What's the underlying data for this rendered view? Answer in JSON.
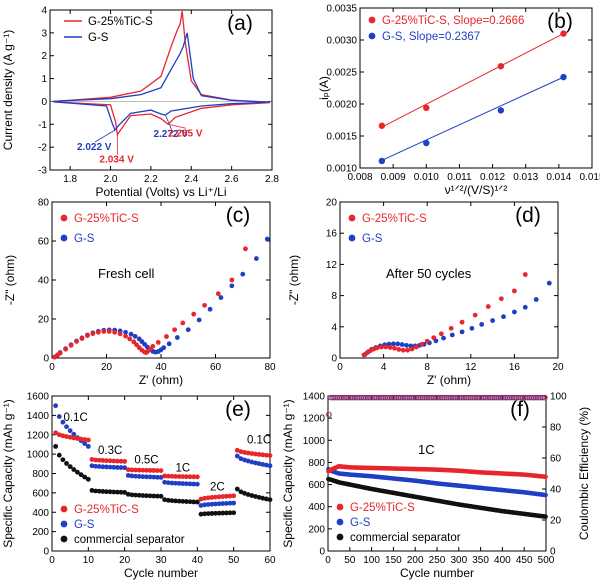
{
  "chart_data": [
    {
      "panel_label": "(a)",
      "type": "line",
      "xlabel": "Potential (Volts) vs Li⁺/Li",
      "ylabel": "Current density (A g⁻¹)",
      "xlim": [
        1.7,
        2.8
      ],
      "ylim": [
        -3,
        4
      ],
      "xticks": [
        "1.8",
        "2.0",
        "2.2",
        "2.4",
        "2.6",
        "2.8"
      ],
      "yticks": [
        "-3",
        "-2",
        "-1",
        "0",
        "1",
        "2",
        "3",
        "4"
      ],
      "legend_position": "top-left",
      "series": [
        {
          "name": "G-25%TiC-S",
          "color": "#e8262b",
          "x": [
            1.72,
            2.0,
            2.025,
            2.034,
            2.05,
            2.1,
            2.2,
            2.25,
            2.285,
            2.32,
            2.45,
            2.6,
            2.79,
            2.6,
            2.45,
            2.4,
            2.37,
            2.355,
            2.345,
            2.33,
            2.3,
            2.25,
            2.15,
            2.0,
            1.8,
            1.72
          ],
          "y": [
            -0.02,
            -0.15,
            -0.9,
            -1.45,
            -1.25,
            -0.62,
            -0.55,
            -0.75,
            -1.0,
            -0.7,
            -0.3,
            -0.15,
            -0.05,
            0.06,
            0.3,
            0.9,
            2.6,
            3.95,
            3.4,
            3.1,
            2.4,
            1.1,
            0.45,
            0.18,
            0.05,
            0.0
          ]
        },
        {
          "name": "G-S",
          "color": "#1f3fc5",
          "x": [
            1.72,
            1.98,
            2.01,
            2.022,
            2.04,
            2.1,
            2.2,
            2.25,
            2.272,
            2.3,
            2.45,
            2.6,
            2.79,
            2.6,
            2.45,
            2.41,
            2.38,
            2.36,
            2.345,
            2.3,
            2.25,
            2.15,
            2.0,
            1.8,
            1.72
          ],
          "y": [
            -0.02,
            -0.2,
            -1.0,
            -1.25,
            -1.05,
            -0.52,
            -0.38,
            -0.55,
            -0.6,
            -0.42,
            -0.2,
            -0.1,
            -0.03,
            0.05,
            0.25,
            1.0,
            3.0,
            2.4,
            2.1,
            1.4,
            0.6,
            0.3,
            0.12,
            0.04,
            0.0
          ]
        }
      ],
      "annotations": [
        {
          "text": "2.022 V",
          "color": "#1f3fc5",
          "x": 2.022,
          "y": -1.25
        },
        {
          "text": "2.034 V",
          "color": "#e8262b",
          "x": 2.034,
          "y": -1.45
        },
        {
          "text": "2.272 V",
          "color": "#1f3fc5",
          "x": 2.272,
          "y": -0.6
        },
        {
          "text": "2.285 V",
          "color": "#e8262b",
          "x": 2.285,
          "y": -1.0
        }
      ]
    },
    {
      "panel_label": "(b)",
      "type": "scatter",
      "xlabel": "ν¹ᐟ²/(V/S)¹ᐟ²",
      "ylabel": "iₚ(A)",
      "xlim": [
        0.008,
        0.015
      ],
      "ylim": [
        0.001,
        0.0035
      ],
      "xticks": [
        "0.008",
        "0.009",
        "0.010",
        "0.011",
        "0.012",
        "0.013",
        "0.014",
        "0.015"
      ],
      "yticks": [
        "0.0010",
        "0.0015",
        "0.0020",
        "0.0025",
        "0.0030",
        "0.0035"
      ],
      "legend_position": "top-left",
      "series": [
        {
          "name": "G-25%TiC-S, Slope=0.2666",
          "color": "#e8262b",
          "x": [
            0.00866,
            0.01,
            0.01225,
            0.01414
          ],
          "y": [
            0.00166,
            0.00194,
            0.00259,
            0.0031
          ],
          "fit": {
            "slope": 0.2666,
            "x_range": [
              0.00866,
              0.01414
            ],
            "y_range": [
              0.00164,
              0.0031
            ]
          }
        },
        {
          "name": "G-S, Slope=0.2367",
          "color": "#1f3fc5",
          "x": [
            0.00866,
            0.01,
            0.01225,
            0.01414
          ],
          "y": [
            0.00111,
            0.00139,
            0.0019,
            0.00242
          ],
          "fit": {
            "slope": 0.2367,
            "x_range": [
              0.00866,
              0.01414
            ],
            "y_range": [
              0.00112,
              0.00242
            ]
          }
        }
      ]
    },
    {
      "panel_label": "(c)",
      "type": "scatter",
      "xlabel": "Z' (ohm)",
      "ylabel": "-Z\" (ohm)",
      "xlim": [
        0,
        80
      ],
      "ylim": [
        0,
        80
      ],
      "xticks": [
        "0",
        "20",
        "40",
        "60",
        "80"
      ],
      "yticks": [
        "0",
        "20",
        "40",
        "60",
        "80"
      ],
      "annotation": "Fresh  cell",
      "legend_position": "top-left",
      "series": [
        {
          "name": "G-25%TiC-S",
          "color": "#e8262b",
          "x": [
            1,
            2,
            3,
            5,
            7,
            9,
            11,
            13,
            15,
            17,
            19,
            21,
            23,
            25,
            27,
            28.5,
            30,
            31,
            32,
            33,
            34,
            34.5,
            35,
            36,
            37,
            39,
            42,
            45,
            48,
            52,
            56,
            61,
            66,
            71
          ],
          "y": [
            0.5,
            1.5,
            2.5,
            4.5,
            6.5,
            8.5,
            10,
            11.5,
            12.5,
            13.2,
            13.6,
            13.6,
            13.2,
            12.4,
            11.2,
            9.8,
            8.3,
            6.8,
            5.3,
            4,
            3,
            2.8,
            3.2,
            4.5,
            6,
            8,
            11,
            14.5,
            18,
            22.5,
            27,
            33,
            40,
            56
          ]
        },
        {
          "name": "G-S",
          "color": "#1f3fc5",
          "x": [
            1,
            2,
            3,
            5,
            7,
            9,
            11,
            13,
            15,
            17,
            19,
            21,
            23,
            25,
            27,
            29,
            30.5,
            32,
            33,
            34,
            35,
            36,
            37,
            38,
            39,
            40,
            41,
            43,
            46,
            50,
            54,
            58,
            62,
            66,
            70,
            75,
            79
          ],
          "y": [
            0.5,
            1.5,
            2.8,
            4.8,
            6.8,
            8.7,
            10.3,
            11.8,
            12.9,
            13.7,
            14.2,
            14.4,
            14.3,
            13.9,
            13.2,
            12.2,
            11.1,
            9.8,
            8.4,
            7,
            5.6,
            4.3,
            3.4,
            3,
            3.3,
            4.2,
            5.3,
            7.3,
            10.5,
            14.5,
            19.5,
            25,
            31,
            37,
            43,
            51,
            61
          ]
        }
      ]
    },
    {
      "panel_label": "(d)",
      "type": "scatter",
      "xlabel": "Z' (ohm)",
      "ylabel": "-Z\" (ohm)",
      "xlim": [
        0,
        20
      ],
      "ylim": [
        0,
        20
      ],
      "xticks": [
        "0",
        "4",
        "8",
        "12",
        "16",
        "20"
      ],
      "yticks": [
        "0",
        "4",
        "8",
        "12",
        "16",
        "20"
      ],
      "annotation": "After 50 cycles",
      "legend_position": "top-left",
      "series": [
        {
          "name": "G-25%TiC-S",
          "color": "#e8262b",
          "x": [
            2.2,
            2.5,
            2.8,
            3.1,
            3.4,
            3.8,
            4.2,
            4.6,
            5,
            5.4,
            5.8,
            6.2,
            6.6,
            7,
            7.5,
            8,
            8.6,
            9.3,
            10.2,
            11.2,
            12.4,
            13.6,
            14.8,
            16,
            17
          ],
          "y": [
            0.4,
            0.7,
            0.95,
            1.15,
            1.3,
            1.4,
            1.42,
            1.35,
            1.25,
            1.1,
            1.0,
            1.0,
            1.15,
            1.4,
            1.75,
            2.15,
            2.6,
            3.1,
            3.8,
            4.6,
            5.5,
            6.6,
            7.6,
            8.6,
            10.7
          ]
        },
        {
          "name": "G-S",
          "color": "#1f3fc5",
          "x": [
            2.3,
            2.6,
            2.9,
            3.3,
            3.7,
            4.1,
            4.5,
            4.9,
            5.3,
            5.7,
            6.1,
            6.5,
            6.9,
            7.3,
            7.7,
            8.2,
            8.8,
            9.5,
            10.3,
            11.2,
            12.1,
            13,
            14,
            15,
            16,
            17,
            18,
            19.2
          ],
          "y": [
            0.45,
            0.8,
            1.1,
            1.35,
            1.55,
            1.7,
            1.78,
            1.82,
            1.8,
            1.72,
            1.62,
            1.55,
            1.55,
            1.62,
            1.75,
            1.95,
            2.2,
            2.55,
            2.95,
            3.35,
            3.8,
            4.3,
            4.8,
            5.3,
            5.9,
            6.5,
            7.5,
            9.6
          ]
        }
      ]
    },
    {
      "panel_label": "(e)",
      "type": "scatter",
      "xlabel": "Cycle number",
      "ylabel": "Specific Capacity (mAh g⁻¹)",
      "xlim": [
        0,
        60
      ],
      "ylim": [
        0,
        1600
      ],
      "xticks": [
        "0",
        "10",
        "20",
        "30",
        "40",
        "50",
        "60"
      ],
      "yticks": [
        "0",
        "200",
        "400",
        "600",
        "800",
        "1000",
        "1200",
        "1400",
        "1600"
      ],
      "rate_labels": [
        {
          "text": "0.1C",
          "x": 6.5,
          "y": 1340
        },
        {
          "text": "0.3C",
          "x": 16,
          "y": 1000
        },
        {
          "text": "0.5C",
          "x": 26,
          "y": 905
        },
        {
          "text": "1C",
          "x": 36,
          "y": 820
        },
        {
          "text": "2C",
          "x": 45.5,
          "y": 625
        },
        {
          "text": "0.1C",
          "x": 57,
          "y": 1110
        }
      ],
      "legend_position": "bottom-left",
      "series": [
        {
          "name": "G-25%TiC-S",
          "color": "#e8262b",
          "stages": [
            {
              "cycles": [
                1,
                10
              ],
              "start": 1220,
              "end": 1145
            },
            {
              "cycles": [
                11,
                20
              ],
              "start": 945,
              "end": 925
            },
            {
              "cycles": [
                21,
                30
              ],
              "start": 840,
              "end": 830
            },
            {
              "cycles": [
                31,
                40
              ],
              "start": 775,
              "end": 765
            },
            {
              "cycles": [
                41,
                50
              ],
              "start": 535,
              "end": 570
            },
            {
              "cycles": [
                51,
                60
              ],
              "start": 1040,
              "end": 985
            }
          ]
        },
        {
          "name": "G-S",
          "color": "#1f3fc5",
          "stages": [
            {
              "cycles": [
                1,
                10
              ],
              "start": 1500,
              "end": 1080
            },
            {
              "cycles": [
                11,
                20
              ],
              "start": 880,
              "end": 860
            },
            {
              "cycles": [
                21,
                30
              ],
              "start": 780,
              "end": 760
            },
            {
              "cycles": [
                31,
                40
              ],
              "start": 710,
              "end": 690
            },
            {
              "cycles": [
                41,
                50
              ],
              "start": 470,
              "end": 495
            },
            {
              "cycles": [
                51,
                60
              ],
              "start": 980,
              "end": 880
            }
          ]
        },
        {
          "name": "commercial separator",
          "color": "#111111",
          "stages": [
            {
              "cycles": [
                1,
                10
              ],
              "start": 1080,
              "end": 740
            },
            {
              "cycles": [
                11,
                20
              ],
              "start": 625,
              "end": 605
            },
            {
              "cycles": [
                21,
                30
              ],
              "start": 585,
              "end": 565
            },
            {
              "cycles": [
                31,
                40
              ],
              "start": 530,
              "end": 505
            },
            {
              "cycles": [
                41,
                50
              ],
              "start": 380,
              "end": 395
            },
            {
              "cycles": [
                51,
                60
              ],
              "start": 640,
              "end": 530
            }
          ]
        }
      ]
    },
    {
      "panel_label": "(f)",
      "type": "scatter",
      "xlabel": "Cycle number",
      "ylabel": "Specific Capacity (mAh g⁻¹)",
      "y2label": "Coulombic Efficiency (%)",
      "xlim": [
        0,
        500
      ],
      "ylim": [
        0,
        1400
      ],
      "y2lim": [
        0,
        100
      ],
      "xticks": [
        "0",
        "50",
        "100",
        "150",
        "200",
        "250",
        "300",
        "350",
        "400",
        "450",
        "500"
      ],
      "yticks": [
        "0",
        "200",
        "400",
        "600",
        "800",
        "1000",
        "1200",
        "1400"
      ],
      "y2ticks": [
        "0",
        "20",
        "40",
        "60",
        "80",
        "100"
      ],
      "annotation": "1C",
      "legend_position": "bottom-left",
      "series": [
        {
          "name": "G-25%TiC-S",
          "color": "#e8262b",
          "x": [
            1,
            10,
            25,
            50,
            100,
            150,
            200,
            250,
            300,
            350,
            400,
            450,
            500
          ],
          "y": [
            720,
            740,
            765,
            755,
            750,
            745,
            740,
            735,
            725,
            710,
            700,
            690,
            670
          ]
        },
        {
          "name": "G-S",
          "color": "#1f3fc5",
          "x": [
            1,
            10,
            25,
            50,
            100,
            150,
            200,
            250,
            300,
            350,
            400,
            450,
            500
          ],
          "y": [
            740,
            720,
            700,
            690,
            675,
            655,
            635,
            610,
            590,
            570,
            550,
            530,
            505
          ]
        },
        {
          "name": "commercial separator",
          "color": "#111111",
          "x": [
            1,
            10,
            25,
            50,
            100,
            150,
            200,
            250,
            300,
            350,
            400,
            450,
            500
          ],
          "y": [
            650,
            640,
            620,
            600,
            560,
            525,
            490,
            455,
            420,
            390,
            360,
            335,
            310
          ]
        }
      ],
      "efficiency": {
        "color_red": "#e8262b",
        "color_blue": "#1f3fc5",
        "value": 99,
        "first_cycle": 88
      }
    }
  ]
}
